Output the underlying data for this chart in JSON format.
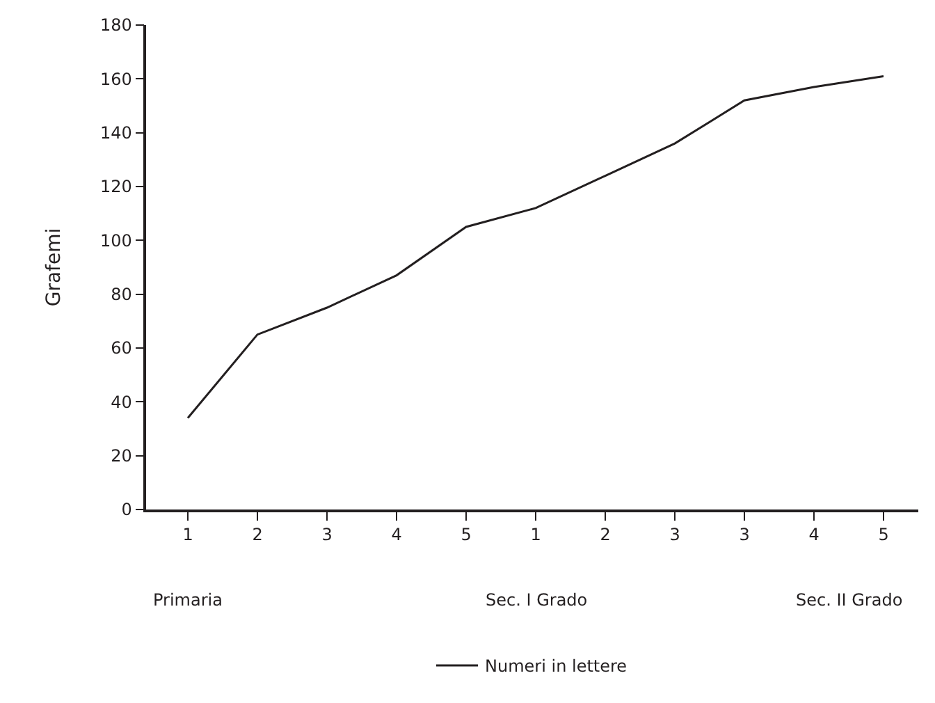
{
  "chart_data": {
    "type": "line",
    "ylabel": "Grafemi",
    "categories": [
      "1",
      "2",
      "3",
      "4",
      "5",
      "1",
      "2",
      "3",
      "3",
      "4",
      "5"
    ],
    "series": [
      {
        "name": "Numeri in lettere",
        "color": "#231f20",
        "values": [
          34,
          65,
          75,
          87,
          105,
          112,
          124,
          136,
          152,
          157,
          161
        ]
      }
    ],
    "ylim": [
      0,
      180
    ],
    "yticks": [
      0,
      20,
      40,
      60,
      80,
      100,
      120,
      140,
      160,
      180
    ],
    "grid": false,
    "legend": "bottom",
    "marker": "none",
    "line_style": "solid",
    "annotations": [
      "Primaria",
      "Sec. I Grado",
      "Sec. II Grado"
    ]
  }
}
